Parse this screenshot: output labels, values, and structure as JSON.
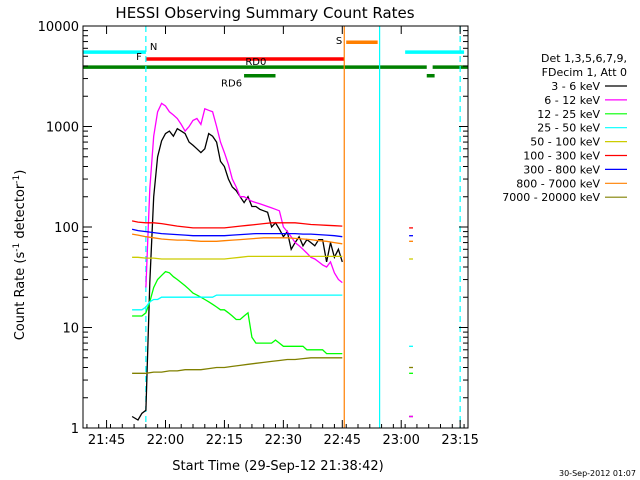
{
  "chart_data": {
    "type": "line",
    "title": "HESSI Observing Summary Count Rates",
    "xlabel": "Start Time (29-Sep-12 21:38:42)",
    "ylabel_main": "Count Rate (s",
    "ylabel_sup1": "-1",
    "ylabel_mid": " detector",
    "ylabel_sup2": "-1",
    "ylabel_end": ")",
    "yscale": "log",
    "xlim_min": [
      0,
      98
    ],
    "ylim": [
      1,
      10000
    ],
    "x_ticks": [
      {
        "min": 6,
        "label": "21:45"
      },
      {
        "min": 21,
        "label": "22:00"
      },
      {
        "min": 36,
        "label": "22:15"
      },
      {
        "min": 51,
        "label": "22:30"
      },
      {
        "min": 66,
        "label": "22:45"
      },
      {
        "min": 81,
        "label": "23:00"
      },
      {
        "min": 96,
        "label": "23:15"
      }
    ],
    "y_ticks": [
      {
        "v": 1,
        "label": "1"
      },
      {
        "v": 10,
        "label": "10"
      },
      {
        "v": 100,
        "label": "100"
      },
      {
        "v": 1000,
        "label": "1000"
      },
      {
        "v": 10000,
        "label": "10000"
      }
    ],
    "flags": [
      {
        "label": "N",
        "color": "#00ffff",
        "level": 5500,
        "segments": [
          [
            0,
            16
          ],
          [
            82,
            97
          ]
        ]
      },
      {
        "label": "F",
        "color": "#ff0000",
        "level": 4700,
        "segments": [
          [
            16,
            66.5
          ]
        ]
      },
      {
        "label": "S",
        "color": "#ff7f00",
        "level": 6900,
        "segments": [
          [
            67,
            75
          ]
        ]
      },
      {
        "label": "RD0",
        "color": "#008000",
        "level": 3900,
        "segments": [
          [
            0,
            87.5
          ],
          [
            89,
            98
          ]
        ]
      },
      {
        "label": "RD6",
        "color": "#008000",
        "level": 3200,
        "segments": [
          [
            41,
            49
          ],
          [
            87.5,
            89.5
          ]
        ]
      }
    ],
    "vlines": [
      {
        "x": 16,
        "color": "#00ffff",
        "style": "dash"
      },
      {
        "x": 66.5,
        "color": "#ff7f00",
        "style": "solid"
      },
      {
        "x": 75.5,
        "color": "#00ffff",
        "style": "solid"
      },
      {
        "x": 96,
        "color": "#00ffff",
        "style": "dash"
      }
    ],
    "legend_header": [
      "Det 1,3,5,6,7,9,",
      "FDecim 1, Att 0"
    ],
    "legend_position": "right",
    "series": [
      {
        "name": "3 - 6 keV",
        "color": "#000000",
        "x": [
          12.5,
          14,
          15,
          16,
          17,
          18,
          19,
          20,
          21,
          22,
          23,
          24,
          25,
          26,
          27,
          28,
          29,
          30,
          31,
          32,
          33,
          34,
          35,
          36,
          37,
          38,
          39,
          40,
          41,
          42,
          43,
          44,
          45,
          46,
          47,
          48,
          49,
          50,
          51,
          52,
          53,
          54,
          55,
          56,
          57,
          58,
          59,
          60,
          61,
          62,
          63,
          64,
          65,
          66
        ],
        "y": [
          1.3,
          1.2,
          1.4,
          1.5,
          28,
          200,
          500,
          720,
          850,
          900,
          800,
          950,
          900,
          850,
          700,
          650,
          600,
          550,
          600,
          850,
          800,
          700,
          450,
          400,
          300,
          250,
          230,
          200,
          175,
          200,
          160,
          160,
          150,
          145,
          140,
          100,
          110,
          95,
          80,
          90,
          60,
          70,
          80,
          65,
          75,
          70,
          65,
          75,
          75,
          45,
          70,
          50,
          60,
          45
        ]
      },
      {
        "name": "6 - 12 keV",
        "color": "#ff00ff",
        "x": [
          16,
          17,
          18,
          19,
          20,
          21,
          22,
          23,
          24,
          25,
          26,
          27,
          28,
          29,
          30,
          31,
          32,
          33,
          34,
          35,
          36,
          37,
          38,
          39,
          40,
          41,
          42,
          43,
          44,
          45,
          46,
          47,
          48,
          49,
          50,
          51,
          52,
          53,
          54,
          55,
          56,
          57,
          58,
          59,
          60,
          61,
          62,
          63,
          64,
          65,
          66
        ],
        "y": [
          25,
          240,
          800,
          1400,
          1700,
          1600,
          1400,
          1300,
          1200,
          1050,
          900,
          1000,
          1150,
          1200,
          1050,
          1500,
          1450,
          1400,
          1000,
          700,
          550,
          420,
          300,
          250,
          200,
          200,
          190,
          180,
          175,
          170,
          165,
          160,
          155,
          150,
          145,
          100,
          90,
          80,
          70,
          65,
          60,
          55,
          50,
          48,
          45,
          42,
          40,
          45,
          35,
          30,
          28
        ]
      },
      {
        "name": "12 - 25 keV",
        "color": "#00ff00",
        "x": [
          12.5,
          14,
          15,
          16,
          17,
          18,
          19,
          20,
          21,
          22,
          23,
          24,
          25,
          26,
          27,
          28,
          29,
          30,
          31,
          32,
          33,
          34,
          35,
          36,
          37,
          38,
          39,
          40,
          41,
          42,
          43,
          44,
          45,
          46,
          47,
          48,
          49,
          50,
          51,
          52,
          53,
          54,
          55,
          56,
          57,
          58,
          59,
          60,
          61,
          62,
          63,
          64,
          65,
          66
        ],
        "y": [
          13,
          13,
          13,
          14,
          18,
          25,
          30,
          33,
          36,
          35,
          32,
          30,
          28,
          26,
          24,
          22,
          21,
          20,
          19,
          18,
          17,
          16,
          15,
          15,
          14,
          13,
          12,
          12,
          13,
          14,
          8,
          7,
          7,
          7,
          7,
          7,
          7.5,
          7,
          6.5,
          6.5,
          6.5,
          6.5,
          6.5,
          6.5,
          6,
          6,
          6,
          6,
          6,
          5.5,
          5.5,
          5.5,
          5.5,
          5.5
        ]
      },
      {
        "name": "25 - 50 keV",
        "color": "#00ffff",
        "x": [
          12.5,
          14,
          15,
          16,
          17,
          18,
          19,
          20,
          21,
          22,
          23,
          24,
          25,
          26,
          27,
          28,
          29,
          30,
          31,
          32,
          33,
          34,
          35,
          36,
          37,
          38,
          39,
          40,
          41,
          42,
          43,
          44,
          45,
          46,
          47,
          48,
          49,
          50,
          51,
          52,
          53,
          54,
          55,
          56,
          57,
          58,
          59,
          60,
          61,
          62,
          63,
          64,
          65,
          66
        ],
        "y": [
          15,
          15,
          15,
          16,
          18,
          19,
          19,
          20,
          20,
          20,
          20,
          20,
          20,
          20,
          20,
          20,
          20,
          20,
          20,
          20,
          20,
          21,
          21,
          21,
          21,
          21,
          21,
          21,
          21,
          21,
          21,
          21,
          21,
          21,
          21,
          21,
          21,
          21,
          21,
          21,
          21,
          21,
          21,
          21,
          21,
          21,
          21,
          21,
          21,
          21,
          21,
          21,
          21,
          21
        ]
      },
      {
        "name": "50 - 100 keV",
        "color": "#cccc00",
        "x": [
          12.5,
          14,
          16,
          18,
          20,
          22,
          24,
          26,
          28,
          30,
          32,
          34,
          36,
          38,
          40,
          42,
          44,
          46,
          48,
          50,
          52,
          54,
          56,
          58,
          60,
          62,
          64,
          66
        ],
        "y": [
          50,
          50,
          49,
          49,
          48,
          48,
          48,
          48,
          48,
          48,
          48,
          48,
          48,
          49,
          50,
          51,
          51,
          51,
          51,
          51,
          51,
          51,
          51,
          51,
          51,
          51,
          51,
          51
        ]
      },
      {
        "name": "100 - 300 keV",
        "color": "#ff0000",
        "x": [
          12.5,
          14,
          16,
          18,
          20,
          22,
          24,
          26,
          28,
          30,
          32,
          34,
          36,
          38,
          40,
          42,
          44,
          46,
          48,
          50,
          52,
          54,
          56,
          58,
          60,
          62,
          64,
          66
        ],
        "y": [
          115,
          112,
          110,
          110,
          108,
          105,
          102,
          100,
          98,
          98,
          98,
          98,
          98,
          100,
          102,
          104,
          106,
          108,
          110,
          110,
          110,
          110,
          108,
          106,
          105,
          104,
          103,
          102
        ]
      },
      {
        "name": "300 - 800 keV",
        "color": "#0000ff",
        "x": [
          12.5,
          14,
          16,
          18,
          20,
          22,
          24,
          26,
          28,
          30,
          32,
          34,
          36,
          38,
          40,
          42,
          44,
          46,
          48,
          50,
          52,
          54,
          56,
          58,
          60,
          62,
          64,
          66
        ],
        "y": [
          95,
          92,
          90,
          88,
          86,
          85,
          84,
          83,
          82,
          82,
          82,
          82,
          82,
          83,
          84,
          85,
          86,
          86,
          86,
          86,
          86,
          86,
          85,
          85,
          84,
          83,
          82,
          80
        ]
      },
      {
        "name": "800 - 7000 keV",
        "color": "#ff8000",
        "x": [
          12.5,
          14,
          16,
          18,
          20,
          22,
          24,
          26,
          28,
          30,
          32,
          34,
          36,
          38,
          40,
          42,
          44,
          46,
          48,
          50,
          52,
          54,
          56,
          58,
          60,
          62,
          64,
          66
        ],
        "y": [
          85,
          83,
          80,
          78,
          76,
          75,
          74,
          74,
          73,
          72,
          72,
          72,
          73,
          74,
          75,
          76,
          77,
          78,
          78,
          78,
          78,
          77,
          76,
          75,
          73,
          72,
          70,
          68
        ]
      },
      {
        "name": "7000 - 20000 keV",
        "color": "#808000",
        "x": [
          12.5,
          14,
          16,
          18,
          20,
          22,
          24,
          26,
          28,
          30,
          32,
          34,
          36,
          38,
          40,
          42,
          44,
          46,
          48,
          50,
          52,
          54,
          56,
          58,
          60,
          62,
          64,
          66
        ],
        "y": [
          3.5,
          3.5,
          3.5,
          3.6,
          3.6,
          3.7,
          3.7,
          3.8,
          3.8,
          3.8,
          3.9,
          4,
          4,
          4.1,
          4.2,
          4.3,
          4.4,
          4.5,
          4.6,
          4.7,
          4.8,
          4.8,
          4.9,
          5,
          5,
          5,
          5,
          5
        ]
      }
    ],
    "late_segment_x": [
      83,
      83.4,
      84
    ],
    "late_segment_y": [
      [
        1.3,
        1.3,
        1.3
      ],
      [
        1.3,
        1.3,
        1.3
      ],
      [
        3.5,
        3.5,
        3.5
      ],
      [
        6.5,
        6.5,
        6.5
      ],
      [
        48,
        48,
        48
      ],
      [
        98,
        98,
        98
      ],
      [
        82,
        82,
        82
      ],
      [
        72,
        72,
        72
      ],
      [
        4,
        4,
        4
      ]
    ],
    "timestamp": "30-Sep-2012 01:07"
  }
}
